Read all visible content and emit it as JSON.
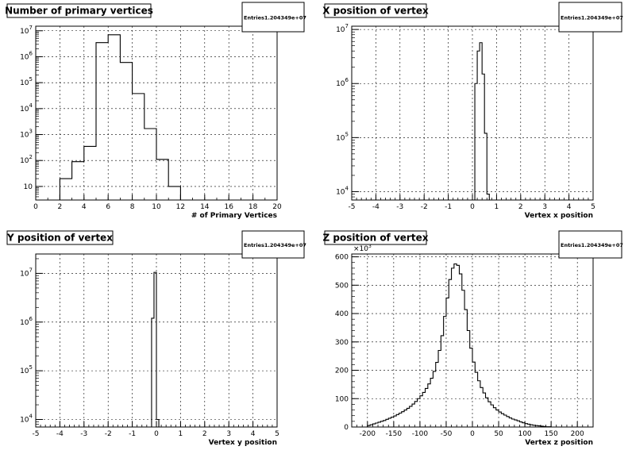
{
  "chart_data": [
    {
      "type": "histogram",
      "title": "Number of primary vertices",
      "xlabel": "# of Primary Vertices",
      "entries_label": "Entries",
      "entries_value": "1.204349e+07",
      "xlim": [
        0,
        20
      ],
      "yscale": "log",
      "ylim": [
        3,
        15000000
      ],
      "grid": true,
      "x_ticks": [
        "0",
        "2",
        "4",
        "6",
        "8",
        "10",
        "12",
        "14",
        "16",
        "18",
        "20"
      ],
      "y_ticks": [
        {
          "base": "10",
          "exp": "7"
        },
        {
          "base": "10",
          "exp": "6"
        },
        {
          "base": "10",
          "exp": "5"
        },
        {
          "base": "10",
          "exp": "4"
        },
        {
          "base": "10",
          "exp": "3"
        },
        {
          "base": "10",
          "exp": "2"
        },
        {
          "base": "10",
          "exp": ""
        }
      ],
      "bin_edges": [
        1,
        2,
        3,
        4,
        5,
        6,
        7,
        8,
        9,
        10,
        11,
        12
      ],
      "values": [
        3,
        20,
        90,
        350,
        3500000,
        7000000,
        600000,
        38000,
        1700,
        110,
        10
      ]
    },
    {
      "type": "histogram",
      "title": "X position of vertex",
      "xlabel": "Vertex x position",
      "entries_label": "Entries",
      "entries_value": "1.204349e+07",
      "xlim": [
        -5,
        5
      ],
      "yscale": "log",
      "ylim": [
        7000,
        11500000
      ],
      "grid": true,
      "x_ticks": [
        "-5",
        "-4",
        "-3",
        "-2",
        "-1",
        "0",
        "1",
        "2",
        "3",
        "4",
        "5"
      ],
      "y_ticks": [
        {
          "base": "10",
          "exp": "7"
        },
        {
          "base": "10",
          "exp": "6"
        },
        {
          "base": "10",
          "exp": "5"
        },
        {
          "base": "10",
          "exp": "4"
        }
      ],
      "bin_edges": [
        0.0,
        0.1,
        0.2,
        0.3,
        0.4,
        0.5,
        0.6,
        0.7
      ],
      "values": [
        7000,
        1000000,
        4000000,
        5700000,
        1500000,
        120000,
        9000
      ]
    },
    {
      "type": "histogram",
      "title": "Y position of vertex",
      "xlabel": "Vertex y position",
      "entries_label": "Entries",
      "entries_value": "1.204349e+07",
      "xlim": [
        -5,
        5
      ],
      "yscale": "log",
      "ylim": [
        7000,
        25000000
      ],
      "grid": true,
      "x_ticks": [
        "-5",
        "-4",
        "-3",
        "-2",
        "-1",
        "0",
        "1",
        "2",
        "3",
        "4",
        "5"
      ],
      "y_ticks": [
        {
          "base": "10",
          "exp": "7"
        },
        {
          "base": "10",
          "exp": "6"
        },
        {
          "base": "10",
          "exp": "5"
        },
        {
          "base": "10",
          "exp": "4"
        }
      ],
      "bin_edges": [
        -0.2,
        -0.1,
        0.0,
        0.1
      ],
      "values": [
        1200000,
        10500000,
        10000
      ]
    },
    {
      "type": "histogram",
      "title": "Z position of vertex",
      "xlabel": "Vertex z position",
      "entries_label": "Entries",
      "entries_value": "1.204349e+07",
      "multiplier_base": "×10",
      "multiplier_exp": "3",
      "xlim": [
        -230,
        230
      ],
      "yscale": "linear",
      "ylim": [
        0,
        610
      ],
      "grid": true,
      "x_ticks": [
        "-200",
        "-150",
        "-100",
        "-50",
        "0",
        "50",
        "100",
        "150",
        "200"
      ],
      "x_tick_values": [
        -200,
        -150,
        -100,
        -50,
        0,
        50,
        100,
        150,
        200
      ],
      "y_ticks": [
        "0",
        "100",
        "200",
        "300",
        "400",
        "500",
        "600"
      ],
      "y_tick_values": [
        0,
        100,
        200,
        300,
        400,
        500,
        600
      ],
      "bin_width": 5,
      "bin_start": -200,
      "values": [
        5,
        8,
        11,
        14,
        17,
        20,
        23,
        27,
        31,
        35,
        39,
        44,
        49,
        54,
        60,
        66,
        73,
        81,
        90,
        100,
        110,
        122,
        136,
        152,
        172,
        196,
        228,
        270,
        322,
        390,
        455,
        520,
        560,
        575,
        570,
        540,
        482,
        414,
        340,
        278,
        229,
        193,
        163,
        139,
        120,
        103,
        89,
        78,
        68,
        60,
        53,
        47,
        42,
        37,
        32,
        28,
        25,
        22,
        18,
        15,
        12,
        10,
        8,
        6,
        5,
        4,
        3,
        2,
        1,
        1,
        0,
        0,
        0,
        0,
        0,
        0,
        0,
        0,
        0,
        0
      ]
    }
  ]
}
